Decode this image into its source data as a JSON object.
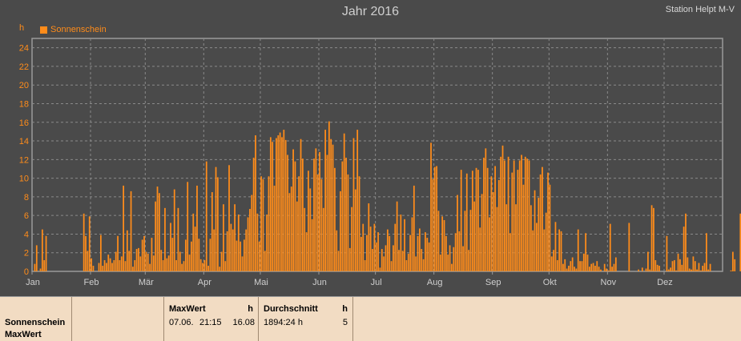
{
  "header": {
    "title": "Jahr 2016",
    "station": "Station Helpt M-V",
    "unit": "h",
    "legend_label": "Sonnenschein"
  },
  "colors": {
    "accent": "#ff8c1a",
    "background": "#4a4a4a",
    "grid": "#8a8a8a",
    "footer": "#f2dcc3"
  },
  "chart_data": {
    "type": "bar",
    "title": "Jahr 2016",
    "ylabel": "h",
    "ylim": [
      0,
      25
    ],
    "yticks": [
      0,
      2,
      4,
      6,
      8,
      10,
      12,
      14,
      16,
      18,
      20,
      22,
      24
    ],
    "grid": true,
    "legend_position": "top-left",
    "months": [
      "Jan",
      "Feb",
      "Mär",
      "Apr",
      "Mai",
      "Jun",
      "Jul",
      "Aug",
      "Sep",
      "Okt",
      "Nov",
      "Dez"
    ],
    "series": [
      {
        "name": "Sonnenschein",
        "values": [
          0,
          0.8,
          2.8,
          0,
          0.3,
          4.5,
          1.2,
          3.8,
          0,
          0,
          0,
          0,
          0,
          0,
          0,
          0,
          0,
          0,
          0,
          0,
          0,
          0,
          0,
          0,
          0,
          0,
          0,
          6.2,
          3.8,
          2.2,
          5.9,
          1.4,
          0.6,
          0,
          0,
          0.9,
          3.9,
          0.6,
          1.2,
          0.9,
          1.8,
          1.4,
          0.9,
          1.2,
          2.1,
          3.8,
          1.2,
          1.6,
          9.2,
          1.1,
          4.4,
          2.2,
          8.6,
          0.5,
          1.2,
          2.4,
          2.5,
          1.6,
          3.4,
          3.8,
          2.1,
          1.9,
          0.8,
          3.6,
          1.7,
          7.5,
          9.1,
          8.4,
          2.3,
          1.2,
          6.8,
          1.4,
          1.7,
          5.2,
          3.6,
          8.8,
          1.2,
          6.8,
          2.1,
          0.8,
          1.1,
          3.4,
          9.6,
          1.8,
          3.2,
          6.2,
          4.8,
          9.2,
          3.5,
          1.3,
          0.9,
          1.2,
          11.8,
          0.6,
          3.5,
          8.5,
          4.5,
          11.2,
          10.1,
          0.5,
          2.1,
          7.2,
          1.1,
          4.3,
          11.4,
          5.1,
          4.5,
          7.2,
          3.3,
          6.1,
          3.2,
          1.6,
          3.4,
          4.5,
          5.8,
          6.7,
          8.2,
          12.2,
          14.6,
          6.2,
          3.2,
          10.2,
          9.9,
          2.2,
          6.1,
          10.2,
          14.4,
          13.9,
          9.2,
          14.3,
          14.6,
          14.9,
          14.4,
          15.2,
          14.1,
          12.5,
          8.4,
          9.1,
          13.1,
          11.8,
          7.5,
          10.2,
          14.2,
          12.1,
          6.8,
          4.2,
          10.8,
          8.9,
          5.6,
          12.1,
          13.2,
          10.4,
          12.8,
          9.9,
          6.8,
          15.2,
          12.5,
          16.1,
          14.2,
          13.6,
          11.1,
          4.4,
          2.2,
          8.6,
          11.8,
          14.8,
          12.2,
          10.4,
          2.5,
          6.9,
          14.3,
          8.8,
          15.2,
          10.2,
          3.7,
          5.1,
          1.2,
          3.9,
          7.3,
          4.8,
          2.4,
          5.1,
          3.1,
          4.2,
          0.4,
          2.4,
          1.6,
          2.8,
          4.5,
          3.8,
          1.1,
          2.8,
          5.1,
          7.5,
          2.3,
          6.1,
          2.2,
          5.6,
          1.2,
          1.9,
          3.9,
          5.8,
          9.2,
          1.6,
          3.8,
          4.6,
          2.4,
          1.3,
          4.2,
          3.6,
          3.1,
          13.8,
          9.9,
          11.2,
          11.3,
          6.5,
          1.8,
          5.9,
          5.5,
          3.8,
          1.8,
          2.8,
          0.8,
          2.6,
          4.1,
          8.2,
          4.3,
          10.9,
          2.7,
          6.5,
          10.5,
          2.3,
          6.6,
          10.8,
          7.5,
          11.1,
          10.9,
          4.7,
          8.3,
          12.2,
          13.2,
          11.1,
          5.8,
          10.2,
          8.5,
          11.3,
          6.9,
          9.8,
          12.3,
          13.5,
          11.9,
          7.2,
          12.3,
          4.1,
          10.6,
          11.9,
          7.2,
          10.9,
          11.9,
          12.5,
          9.3,
          12.3,
          12.1,
          11.9,
          7.1,
          4.4,
          8.7,
          5.2,
          7.9,
          10.4,
          11.2,
          4.5,
          6.3,
          10.6,
          9.3,
          1.6,
          2.3,
          5.3,
          1.2,
          4.5,
          4.3,
          0.8,
          1.3,
          0.3,
          0.6,
          1.1,
          1.5,
          0.5,
          0.3,
          4.5,
          1.1,
          1.1,
          1.9,
          4.1,
          1.8,
          0.5,
          0.8,
          0.9,
          0.6,
          1.1,
          0.5,
          0.2,
          0,
          0.8,
          0.3,
          0.1,
          5.1,
          0.5,
          0.8,
          1.5,
          0,
          0,
          0,
          0,
          0,
          0,
          5.2,
          0,
          0,
          0,
          0,
          0.2,
          0,
          0.4,
          0,
          0.3,
          2.1,
          0.2,
          7.1,
          6.8,
          1.2,
          0.7,
          0.6,
          0,
          0,
          0,
          3.8,
          0.2,
          0.4,
          1.1,
          1.2,
          0.1,
          1.9,
          1.3,
          0.7,
          4.8,
          6.2,
          1.5,
          0.3,
          0.2,
          1.6,
          1.1,
          0.2,
          0.9,
          0.1,
          0.6,
          0.9,
          4.1,
          0.2,
          0.8,
          0,
          0,
          0,
          0,
          0,
          0,
          0,
          0,
          0,
          0,
          0.1,
          2.1,
          1.3,
          0,
          0,
          6.2
        ]
      }
    ]
  },
  "footer": {
    "row1": "Sonnenschein",
    "row2": "MaxWert",
    "max_header": "MaxWert",
    "max_unit": "h",
    "max_date": "07.06.",
    "max_time": "21:15",
    "max_value": "16.08",
    "avg_header": "Durchschnitt",
    "avg_unit": "h",
    "avg_value": "1894:24 h",
    "avg_count": "5"
  }
}
